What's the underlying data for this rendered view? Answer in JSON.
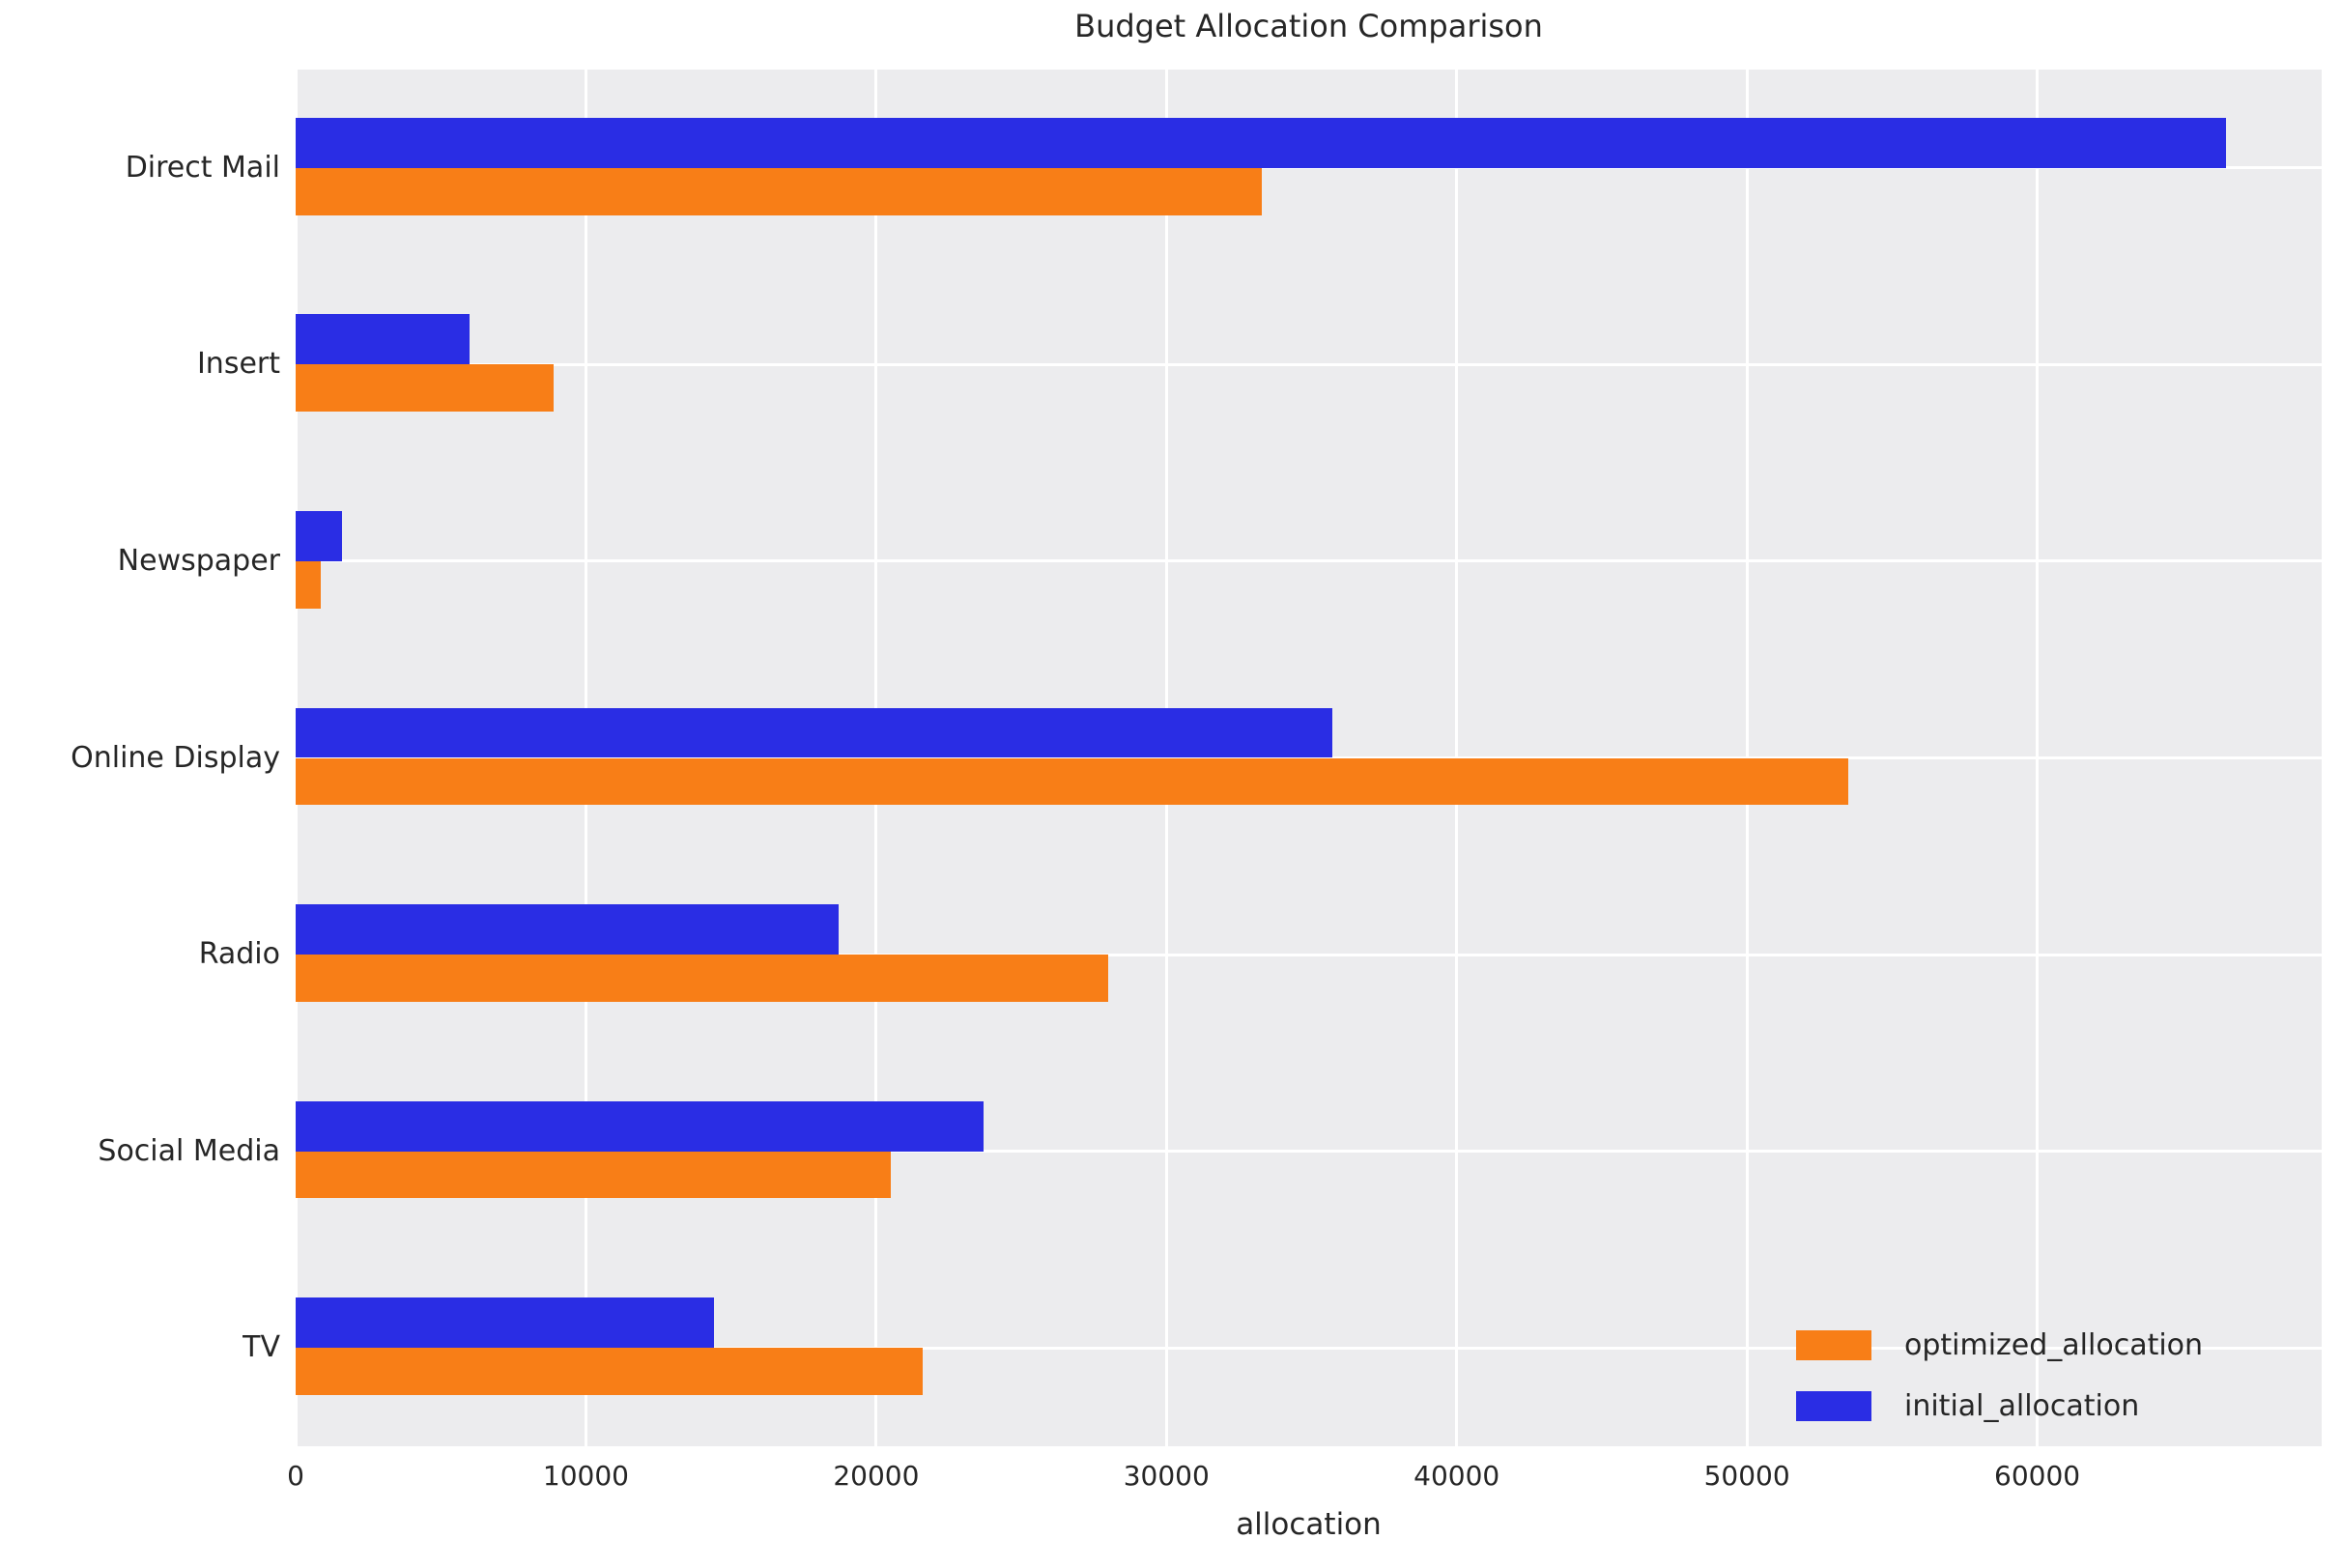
{
  "title": "Budget Allocation Comparison",
  "chart_data": {
    "type": "bar",
    "orientation": "horizontal",
    "title": "Budget Allocation Comparison",
    "xlabel": "allocation",
    "ylabel": "",
    "categories": [
      "Direct Mail",
      "Insert",
      "Newspaper",
      "Online Display",
      "Radio",
      "Social Media",
      "TV"
    ],
    "series": [
      {
        "name": "optimized_allocation",
        "color": "#f87e17",
        "values": [
          33300,
          8900,
          850,
          53500,
          28000,
          20500,
          21600
        ]
      },
      {
        "name": "initial_allocation",
        "color": "#2a2de4",
        "values": [
          66500,
          6000,
          1600,
          35700,
          18700,
          23700,
          14400
        ]
      }
    ],
    "bar_order_top_to_bottom": [
      "initial_allocation",
      "optimized_allocation"
    ],
    "xlim": [
      0,
      69800
    ],
    "xticks": [
      0,
      10000,
      20000,
      30000,
      40000,
      50000,
      60000
    ],
    "grid": true,
    "grid_color": "#ffffff",
    "plot_background": "#ececee",
    "figure_background": "#ffffff",
    "text_color": "#262626",
    "legend_position": "lower right"
  }
}
